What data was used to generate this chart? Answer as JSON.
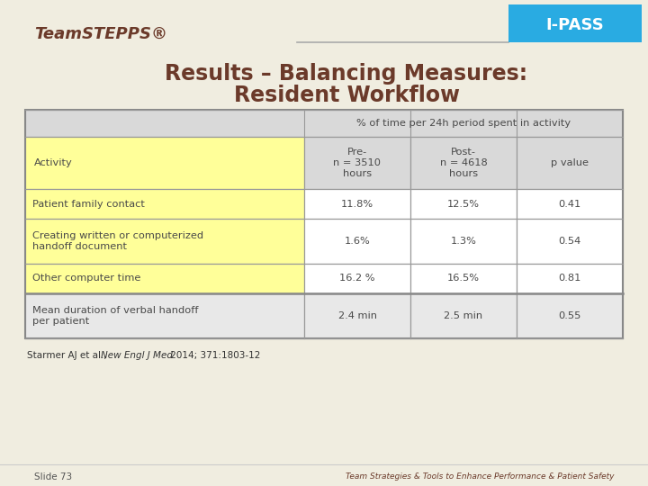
{
  "bg_color": "#f0ede0",
  "header_bg": "#29abe2",
  "header_text": "I-PASS",
  "logo_text": "TeamSTEPPS®",
  "logo_color": "#6b3a2a",
  "title_line1": "Results – Balancing Measures:",
  "title_line2": "Resident Workflow",
  "title_color": "#6b3a2a",
  "col_header_bg": "#d9d9d9",
  "row_header_bg": "#ffff99",
  "white_row_bg": "#ffffff",
  "last_row_bg": "#e8e8e8",
  "border_color": "#999999",
  "text_color": "#4a4a4a",
  "col_span_header": "% of time per 24h period spent in activity",
  "col1_header": "Activity",
  "col2_header": "Pre-\nn = 3510\nhours",
  "col3_header": "Post-\nn = 4618\nhours",
  "col4_header": "p value",
  "rows": [
    [
      "Patient family contact",
      "11.8%",
      "12.5%",
      "0.41"
    ],
    [
      "Creating written or computerized\nhandoff document",
      "1.6%",
      "1.3%",
      "0.54"
    ],
    [
      "Other computer time",
      "16.2 %",
      "16.5%",
      "0.81"
    ],
    [
      "Mean duration of verbal handoff\nper patient",
      "2.4 min",
      "2.5 min",
      "0.55"
    ]
  ],
  "citation_normal": "Starmer AJ et al.,  ",
  "citation_italic": "New Engl J Med",
  "citation_normal2": " 2014; 371:1803-12",
  "slide_num": "Slide 73",
  "footer_text": "Team Strategies & Tools to Enhance Performance & Patient Safety",
  "divider_line_color": "#aaaaaa",
  "ipass_box_color": "#29abe2",
  "table_outer_border": "#888888"
}
